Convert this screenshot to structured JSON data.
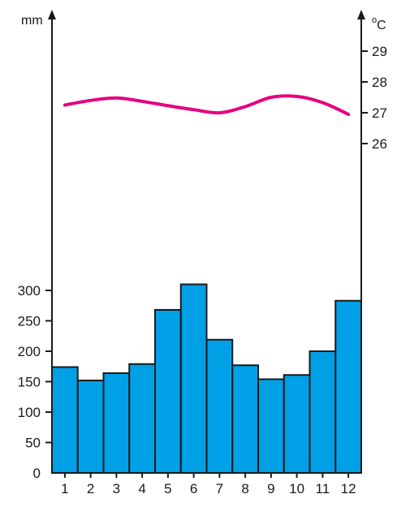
{
  "chart_data": {
    "type": "bar",
    "categories": [
      "1",
      "2",
      "3",
      "4",
      "5",
      "6",
      "7",
      "8",
      "9",
      "10",
      "11",
      "12"
    ],
    "series": [
      {
        "type": "bar",
        "axis": "left",
        "color": "#00a0e6",
        "values": [
          174,
          152,
          164,
          179,
          268,
          310,
          219,
          177,
          154,
          161,
          200,
          283
        ]
      },
      {
        "type": "line",
        "axis": "right",
        "color": "#e6007e",
        "values": [
          27.25,
          27.4,
          27.48,
          27.37,
          27.23,
          27.1,
          27.0,
          27.2,
          27.5,
          27.53,
          27.33,
          26.95
        ]
      }
    ],
    "left_axis": {
      "unit": "mm",
      "ticks": [
        0,
        50,
        100,
        150,
        200,
        250,
        300
      ],
      "tick_labels": [
        "0",
        "50",
        "100",
        "150",
        "200",
        "250",
        "300"
      ]
    },
    "right_axis": {
      "unit_superscript": "o",
      "unit": "C",
      "ticks": [
        26,
        27,
        28,
        29
      ],
      "tick_labels": [
        "26",
        "27",
        "28",
        "29"
      ]
    },
    "grid": false
  }
}
